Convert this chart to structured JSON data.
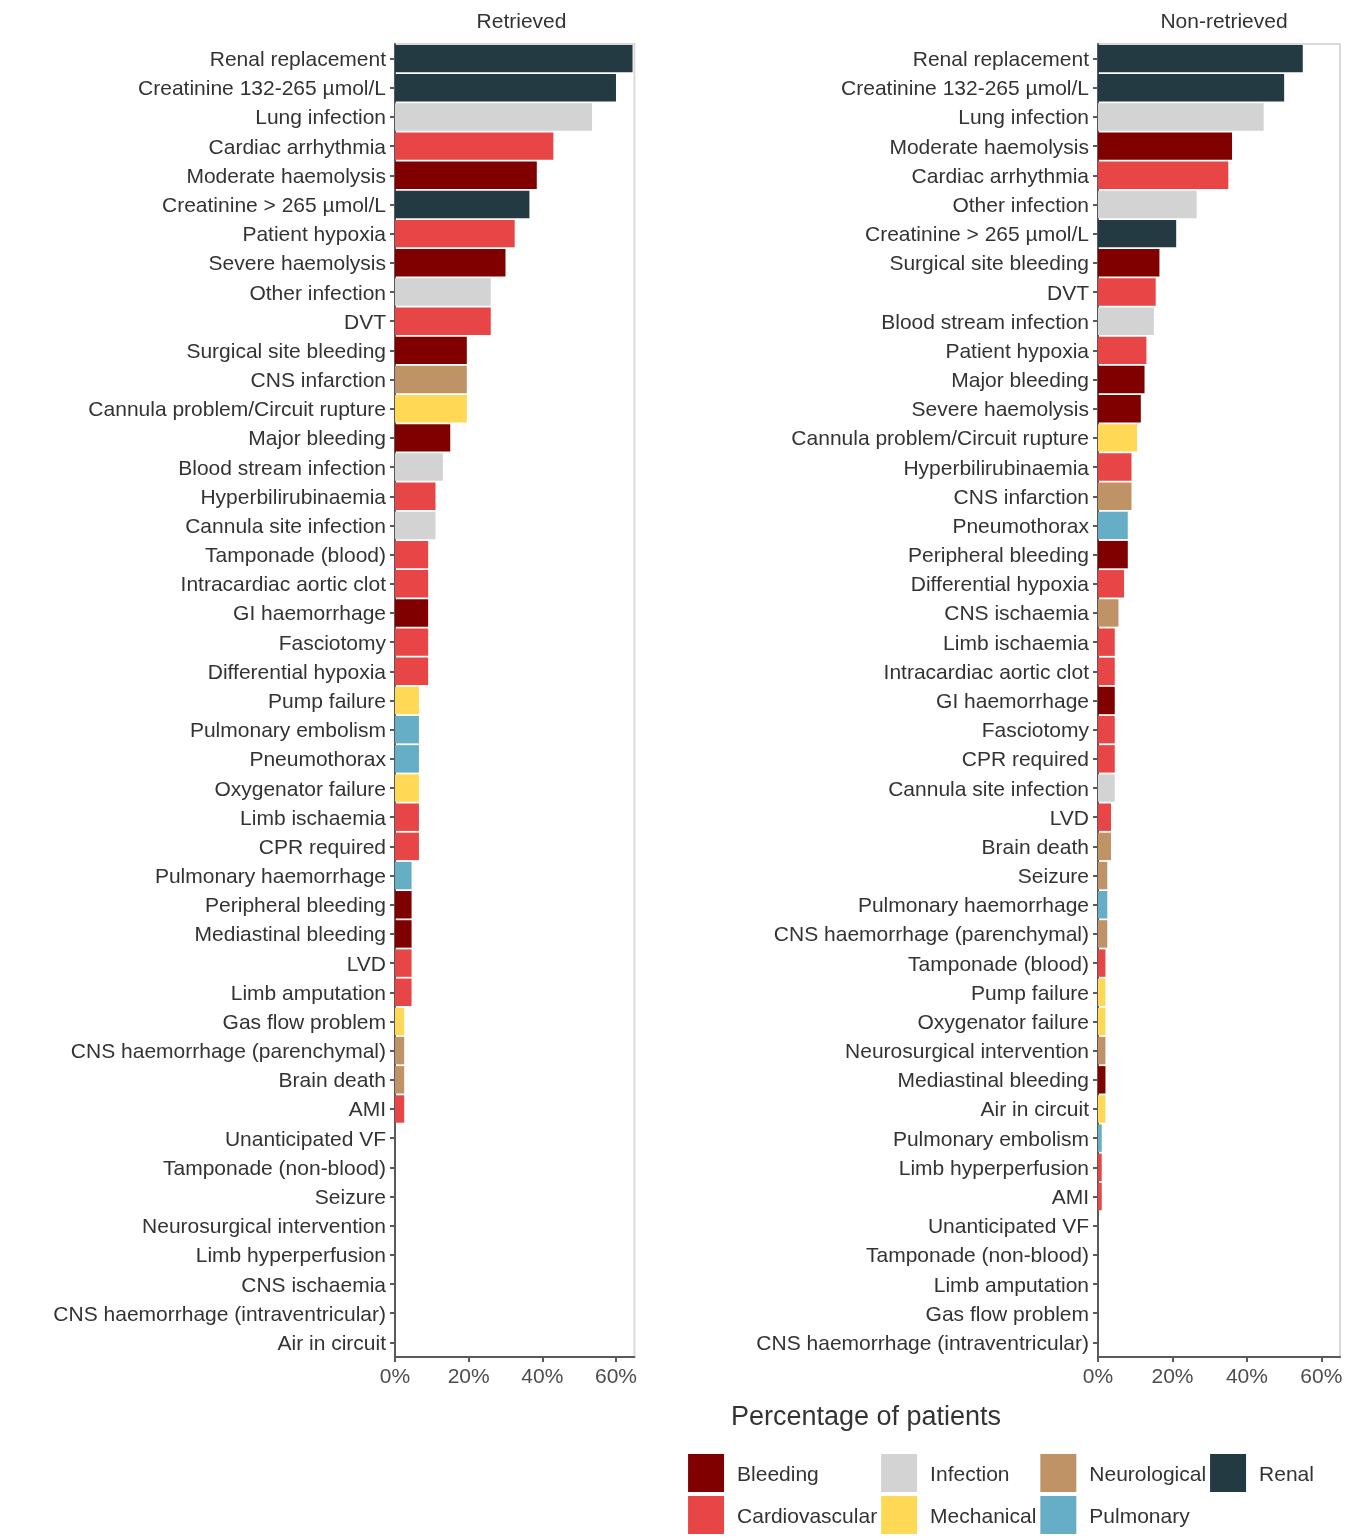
{
  "chart_data": [
    {
      "type": "bar",
      "orientation": "horizontal",
      "title": "Retrieved",
      "categories": [
        "Renal replacement",
        "Creatinine 132-265 µmol/L",
        "Lung infection",
        "Cardiac arrhythmia",
        "Moderate haemolysis",
        "Creatinine > 265 µmol/L",
        "Patient hypoxia",
        "Severe haemolysis",
        "Other infection",
        "DVT",
        "Surgical site bleeding",
        "CNS infarction",
        "Cannula problem/Circuit rupture",
        "Major bleeding",
        "Blood stream infection",
        "Hyperbilirubinaemia",
        "Cannula site infection",
        "Tamponade (blood)",
        "Intracardiac aortic clot",
        "GI haemorrhage",
        "Fasciotomy",
        "Differential hypoxia",
        "Pump failure",
        "Pulmonary embolism",
        "Pneumothorax",
        "Oxygenator failure",
        "Limb ischaemia",
        "CPR required",
        "Pulmonary haemorrhage",
        "Peripheral bleeding",
        "Mediastinal bleeding",
        "LVD",
        "Limb amputation",
        "Gas flow problem",
        "CNS haemorrhage (parenchymal)",
        "Brain death",
        "AMI",
        "Unanticipated VF",
        "Tamponade (non-blood)",
        "Seizure",
        "Neurosurgical intervention",
        "Limb hyperperfusion",
        "CNS ischaemia",
        "CNS haemorrhage (intraventricular)",
        "Air in circuit"
      ],
      "values": [
        64.5,
        60,
        53.5,
        43,
        38.5,
        36.5,
        32.5,
        30,
        26,
        26,
        19.5,
        19.5,
        19.5,
        15,
        13,
        11,
        11,
        9,
        9,
        9,
        9,
        9,
        6.5,
        6.5,
        6.5,
        6.5,
        6.5,
        6.5,
        4.5,
        4.5,
        4.5,
        4.5,
        4.5,
        2.5,
        2.5,
        2.5,
        2.5,
        0,
        0,
        0,
        0,
        0,
        0,
        0,
        0
      ],
      "colors": [
        "#233a43",
        "#233a43",
        "#d3d3d3",
        "#e84646",
        "#800000",
        "#233a43",
        "#e84646",
        "#800000",
        "#d3d3d3",
        "#e84646",
        "#800000",
        "#c09366",
        "#ffd955",
        "#800000",
        "#d3d3d3",
        "#e84646",
        "#d3d3d3",
        "#e84646",
        "#e84646",
        "#800000",
        "#e84646",
        "#e84646",
        "#ffd955",
        "#65aec5",
        "#65aec5",
        "#ffd955",
        "#e84646",
        "#e84646",
        "#65aec5",
        "#800000",
        "#800000",
        "#e84646",
        "#e84646",
        "#ffd955",
        "#c09366",
        "#c09366",
        "#e84646",
        "#e84646",
        "#e84646",
        "#c09366",
        "#c09366",
        "#e84646",
        "#c09366",
        "#c09366",
        "#ffd955"
      ],
      "xlim": [
        0,
        65
      ],
      "xticks": [
        {
          "value": 0,
          "label": "0%"
        },
        {
          "value": 20,
          "label": "20%"
        },
        {
          "value": 40,
          "label": "40%"
        },
        {
          "value": 60,
          "label": "60%"
        }
      ]
    },
    {
      "type": "bar",
      "orientation": "horizontal",
      "stacked": true,
      "title": "Non-retrieved",
      "xlabel": "Percentage of patients",
      "legend": "bottom",
      "categories": [
        "Renal replacement",
        "Creatinine 132-265 µmol/L",
        "Lung infection",
        "Moderate haemolysis",
        "Cardiac arrhythmia",
        "Other infection",
        "Creatinine > 265 µmol/L",
        "Surgical site bleeding",
        "DVT",
        "Blood stream infection",
        "Patient hypoxia",
        "Major bleeding",
        "Severe haemolysis",
        "Cannula problem/Circuit rupture",
        "Hyperbilirubinaemia",
        "CNS infarction",
        "Pneumothorax",
        "Peripheral bleeding",
        "Differential hypoxia",
        "CNS ischaemia",
        "Limb ischaemia",
        "Intracardiac aortic clot",
        "GI haemorrhage",
        "Fasciotomy",
        "CPR required",
        "Cannula site infection",
        "LVD",
        "Brain death",
        "Seizure",
        "Pulmonary haemorrhage",
        "CNS haemorrhage (parenchymal)",
        "Tamponade (blood)",
        "Pump failure",
        "Oxygenator failure",
        "Neurosurgical intervention",
        "Mediastinal bleeding",
        "Air in circuit",
        "Pulmonary embolism",
        "Limb hyperperfusion",
        "AMI",
        "Unanticipated VF",
        "Tamponade (non-blood)",
        "Limb amputation",
        "Gas flow problem",
        "CNS haemorrhage (intraventricular)"
      ],
      "series": [
        {
          "name": "Bleeding",
          "color": "#800000",
          "values": [
            null,
            null,
            null,
            36,
            null,
            null,
            null,
            16.5,
            null,
            null,
            null,
            12.5,
            11.5,
            null,
            null,
            null,
            null,
            8,
            null,
            null,
            null,
            null,
            4.5,
            null,
            null,
            null,
            null,
            null,
            null,
            null,
            null,
            null,
            null,
            null,
            null,
            2,
            null,
            null,
            null,
            null,
            null,
            null,
            null,
            null,
            null
          ]
        },
        {
          "name": "Cardiovascular",
          "color": "#e84646",
          "values": [
            null,
            null,
            null,
            null,
            35,
            null,
            null,
            null,
            15.5,
            null,
            13,
            null,
            null,
            null,
            9,
            null,
            null,
            null,
            7,
            null,
            4.5,
            4.5,
            null,
            4.5,
            4.5,
            null,
            3.5,
            null,
            null,
            null,
            null,
            2,
            null,
            null,
            null,
            null,
            null,
            null,
            1,
            1,
            0,
            0,
            0,
            null,
            null
          ]
        },
        {
          "name": "Infection",
          "color": "#d3d3d3",
          "values": [
            null,
            null,
            44.5,
            null,
            null,
            26.5,
            null,
            null,
            null,
            15,
            null,
            null,
            null,
            null,
            null,
            null,
            null,
            null,
            null,
            null,
            null,
            null,
            null,
            null,
            null,
            4.5,
            null,
            null,
            null,
            null,
            null,
            null,
            null,
            null,
            null,
            null,
            null,
            null,
            null,
            null,
            null,
            null,
            null,
            null,
            null
          ]
        },
        {
          "name": "Mechanical",
          "color": "#ffd955",
          "values": [
            null,
            null,
            null,
            null,
            null,
            null,
            null,
            null,
            null,
            null,
            null,
            null,
            null,
            10.5,
            null,
            null,
            null,
            null,
            null,
            null,
            null,
            null,
            null,
            null,
            null,
            null,
            null,
            null,
            null,
            null,
            null,
            null,
            2,
            2,
            null,
            null,
            2,
            null,
            null,
            null,
            null,
            null,
            null,
            0,
            null
          ]
        },
        {
          "name": "Neurological",
          "color": "#c09366",
          "values": [
            null,
            null,
            null,
            null,
            null,
            null,
            null,
            null,
            null,
            null,
            null,
            null,
            null,
            null,
            null,
            9,
            null,
            null,
            null,
            5.5,
            null,
            null,
            null,
            null,
            null,
            null,
            null,
            3.5,
            2.5,
            null,
            2.5,
            null,
            null,
            null,
            2,
            null,
            null,
            null,
            null,
            null,
            null,
            null,
            null,
            null,
            0
          ]
        },
        {
          "name": "Pulmonary",
          "color": "#65aec5",
          "values": [
            null,
            null,
            null,
            null,
            null,
            null,
            null,
            null,
            null,
            null,
            null,
            null,
            null,
            null,
            null,
            null,
            8,
            null,
            null,
            null,
            null,
            null,
            null,
            null,
            null,
            null,
            null,
            null,
            null,
            2.5,
            null,
            null,
            null,
            null,
            null,
            null,
            null,
            1,
            null,
            null,
            null,
            null,
            null,
            null,
            null
          ]
        },
        {
          "name": "Renal",
          "color": "#233a43",
          "values": [
            55,
            50,
            null,
            null,
            null,
            null,
            21,
            null,
            null,
            null,
            null,
            null,
            null,
            null,
            null,
            null,
            null,
            null,
            null,
            null,
            null,
            null,
            null,
            null,
            null,
            null,
            null,
            null,
            null,
            null,
            null,
            null,
            null,
            null,
            null,
            null,
            null,
            null,
            null,
            null,
            null,
            null,
            null,
            null,
            null
          ]
        }
      ],
      "xlim": [
        0,
        65
      ],
      "xticks": [
        {
          "value": 0,
          "label": "0%"
        },
        {
          "value": 20,
          "label": "20%"
        },
        {
          "value": 40,
          "label": "40%"
        },
        {
          "value": 60,
          "label": "60%"
        }
      ]
    }
  ]
}
